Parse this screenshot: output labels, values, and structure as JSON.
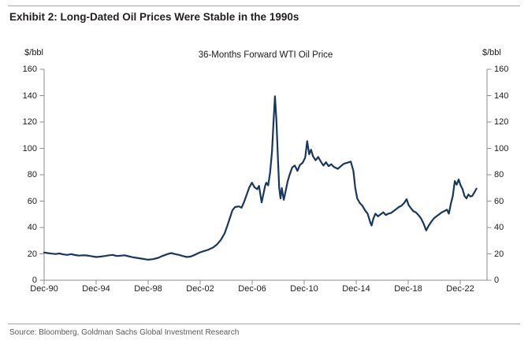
{
  "page": {
    "exhibit_title": "Exhibit 2: Long-Dated Oil Prices Were Stable in the 1990s",
    "source": "Source: Bloomberg, Goldman Sachs Global Investment Research"
  },
  "chart_data": {
    "type": "line",
    "title": "36-Months Forward WTI Oil Price",
    "line_color": "#17375E",
    "axis_color": "#8c8c8c",
    "grid": false,
    "legend": "none",
    "y_axis": {
      "label": "$/bbl",
      "min": 0,
      "max": 160,
      "step": 20,
      "mirrored_right_axis": true,
      "tick_values": [
        0,
        20,
        40,
        60,
        80,
        100,
        120,
        140,
        160
      ]
    },
    "x_axis": {
      "ticks": [
        {
          "label": "Dec-90",
          "year": 1990.92
        },
        {
          "label": "Dec-94",
          "year": 1994.92
        },
        {
          "label": "Dec-98",
          "year": 1998.92
        },
        {
          "label": "Dec-02",
          "year": 2002.92
        },
        {
          "label": "Dec-06",
          "year": 2006.92
        },
        {
          "label": "Dec-10",
          "year": 2010.92
        },
        {
          "label": "Dec-14",
          "year": 2014.92
        },
        {
          "label": "Dec-18",
          "year": 2018.92
        },
        {
          "label": "Dec-22",
          "year": 2022.92
        }
      ],
      "end_year": 2024.97
    },
    "series": [
      {
        "name": "36-Months Forward WTI Oil Price ($/bbl)",
        "points": [
          [
            1990.92,
            21.0
          ],
          [
            1991.2,
            20.6
          ],
          [
            1991.5,
            20.2
          ],
          [
            1991.8,
            19.9
          ],
          [
            1992.1,
            20.3
          ],
          [
            1992.4,
            19.6
          ],
          [
            1992.7,
            19.2
          ],
          [
            1993.0,
            19.8
          ],
          [
            1993.3,
            19.1
          ],
          [
            1993.6,
            18.7
          ],
          [
            1993.9,
            18.9
          ],
          [
            1994.2,
            18.8
          ],
          [
            1994.5,
            18.3
          ],
          [
            1994.92,
            17.6
          ],
          [
            1995.3,
            18.0
          ],
          [
            1995.6,
            18.4
          ],
          [
            1995.92,
            18.9
          ],
          [
            1996.2,
            19.2
          ],
          [
            1996.5,
            18.4
          ],
          [
            1996.8,
            18.6
          ],
          [
            1997.1,
            18.9
          ],
          [
            1997.4,
            18.2
          ],
          [
            1997.7,
            17.5
          ],
          [
            1998.0,
            17.0
          ],
          [
            1998.4,
            16.4
          ],
          [
            1998.92,
            15.6
          ],
          [
            1999.3,
            16.0
          ],
          [
            1999.7,
            17.0
          ],
          [
            2000.0,
            18.3
          ],
          [
            2000.4,
            19.8
          ],
          [
            2000.7,
            20.6
          ],
          [
            2001.0,
            19.8
          ],
          [
            2001.3,
            19.2
          ],
          [
            2001.6,
            18.3
          ],
          [
            2001.9,
            17.6
          ],
          [
            2002.2,
            18.0
          ],
          [
            2002.5,
            19.2
          ],
          [
            2002.92,
            21.2
          ],
          [
            2003.2,
            22.0
          ],
          [
            2003.5,
            23.0
          ],
          [
            2003.9,
            24.8
          ],
          [
            2004.2,
            27.0
          ],
          [
            2004.5,
            30.5
          ],
          [
            2004.8,
            35.5
          ],
          [
            2005.0,
            41.0
          ],
          [
            2005.2,
            47.0
          ],
          [
            2005.4,
            53.0
          ],
          [
            2005.6,
            55.5
          ],
          [
            2005.9,
            56.0
          ],
          [
            2006.1,
            55.0
          ],
          [
            2006.3,
            59.5
          ],
          [
            2006.5,
            65.0
          ],
          [
            2006.7,
            70.5
          ],
          [
            2006.9,
            74.0
          ],
          [
            2007.1,
            70.5
          ],
          [
            2007.3,
            69.0
          ],
          [
            2007.45,
            71.5
          ],
          [
            2007.65,
            59.0
          ],
          [
            2007.8,
            66.0
          ],
          [
            2007.9,
            71.0
          ],
          [
            2008.0,
            74.0
          ],
          [
            2008.15,
            72.0
          ],
          [
            2008.3,
            82.0
          ],
          [
            2008.45,
            98.0
          ],
          [
            2008.55,
            118.0
          ],
          [
            2008.67,
            139.5
          ],
          [
            2008.78,
            122.0
          ],
          [
            2008.9,
            92.0
          ],
          [
            2009.0,
            70.0
          ],
          [
            2009.1,
            62.0
          ],
          [
            2009.2,
            70.0
          ],
          [
            2009.35,
            61.0
          ],
          [
            2009.5,
            68.0
          ],
          [
            2009.65,
            75.0
          ],
          [
            2009.8,
            80.0
          ],
          [
            2010.0,
            85.5
          ],
          [
            2010.2,
            87.0
          ],
          [
            2010.4,
            83.0
          ],
          [
            2010.6,
            87.5
          ],
          [
            2010.8,
            89.0
          ],
          [
            2011.0,
            93.0
          ],
          [
            2011.15,
            105.5
          ],
          [
            2011.3,
            95.5
          ],
          [
            2011.45,
            99.0
          ],
          [
            2011.6,
            94.0
          ],
          [
            2011.8,
            91.0
          ],
          [
            2012.0,
            93.5
          ],
          [
            2012.2,
            90.0
          ],
          [
            2012.4,
            87.0
          ],
          [
            2012.6,
            89.5
          ],
          [
            2012.8,
            86.5
          ],
          [
            2013.0,
            88.0
          ],
          [
            2013.2,
            86.0
          ],
          [
            2013.5,
            84.5
          ],
          [
            2013.8,
            87.0
          ],
          [
            2014.0,
            88.5
          ],
          [
            2014.2,
            89.0
          ],
          [
            2014.5,
            90.0
          ],
          [
            2014.7,
            83.0
          ],
          [
            2014.85,
            70.0
          ],
          [
            2015.0,
            62.0
          ],
          [
            2015.2,
            58.5
          ],
          [
            2015.4,
            56.5
          ],
          [
            2015.6,
            53.0
          ],
          [
            2015.8,
            50.5
          ],
          [
            2016.0,
            44.0
          ],
          [
            2016.1,
            41.5
          ],
          [
            2016.25,
            47.0
          ],
          [
            2016.4,
            50.5
          ],
          [
            2016.6,
            48.5
          ],
          [
            2016.8,
            50.0
          ],
          [
            2017.0,
            51.5
          ],
          [
            2017.2,
            49.5
          ],
          [
            2017.4,
            50.5
          ],
          [
            2017.6,
            51.0
          ],
          [
            2017.8,
            52.5
          ],
          [
            2018.0,
            54.0
          ],
          [
            2018.2,
            55.5
          ],
          [
            2018.4,
            56.5
          ],
          [
            2018.6,
            58.5
          ],
          [
            2018.8,
            61.5
          ],
          [
            2018.95,
            57.0
          ],
          [
            2019.1,
            55.0
          ],
          [
            2019.3,
            52.5
          ],
          [
            2019.5,
            51.5
          ],
          [
            2019.7,
            49.5
          ],
          [
            2019.9,
            47.0
          ],
          [
            2020.1,
            43.0
          ],
          [
            2020.3,
            37.8
          ],
          [
            2020.5,
            41.5
          ],
          [
            2020.7,
            44.5
          ],
          [
            2020.9,
            47.0
          ],
          [
            2021.1,
            48.5
          ],
          [
            2021.3,
            50.0
          ],
          [
            2021.5,
            51.5
          ],
          [
            2021.7,
            52.5
          ],
          [
            2021.9,
            53.5
          ],
          [
            2022.05,
            50.5
          ],
          [
            2022.2,
            58.0
          ],
          [
            2022.35,
            64.0
          ],
          [
            2022.5,
            75.2
          ],
          [
            2022.65,
            72.5
          ],
          [
            2022.8,
            76.4
          ],
          [
            2022.95,
            72.0
          ],
          [
            2023.1,
            69.0
          ],
          [
            2023.25,
            64.0
          ],
          [
            2023.4,
            62.0
          ],
          [
            2023.55,
            65.0
          ],
          [
            2023.7,
            63.5
          ],
          [
            2023.85,
            64.0
          ],
          [
            2024.0,
            66.5
          ],
          [
            2024.17,
            69.5
          ]
        ]
      }
    ]
  }
}
